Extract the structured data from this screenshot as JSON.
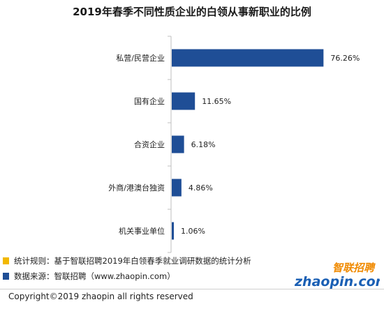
{
  "chart_data": {
    "type": "bar",
    "orientation": "horizontal",
    "title": "2019年春季不同性质企业的白领从事新职业的比例",
    "categories": [
      "私营/民营企业",
      "国有企业",
      "合资企业",
      "外商/港澳台独资",
      "机关事业单位"
    ],
    "values": [
      76.26,
      11.65,
      6.18,
      4.86,
      1.06
    ],
    "value_labels": [
      "76.26%",
      "11.65%",
      "6.18%",
      "4.86%",
      "1.06%"
    ],
    "xlim": [
      0,
      80
    ],
    "bar_color": "#1f4e96",
    "grid": false
  },
  "legend": [
    {
      "text": "统计规则：基于智联招聘2019年白领春季就业调研数据的统计分析",
      "color": "#f2b800"
    },
    {
      "text": "数据来源：智联招聘（www.zhaopin.com）",
      "color": "#1f4e96"
    }
  ],
  "logo": {
    "cn": "智联招聘",
    "en": "zhaopin.com",
    "colors": {
      "orange": "#f08a00",
      "blue": "#1a5fb4"
    }
  },
  "copyright": "Copyright©2019 zhaopin all rights reserved"
}
